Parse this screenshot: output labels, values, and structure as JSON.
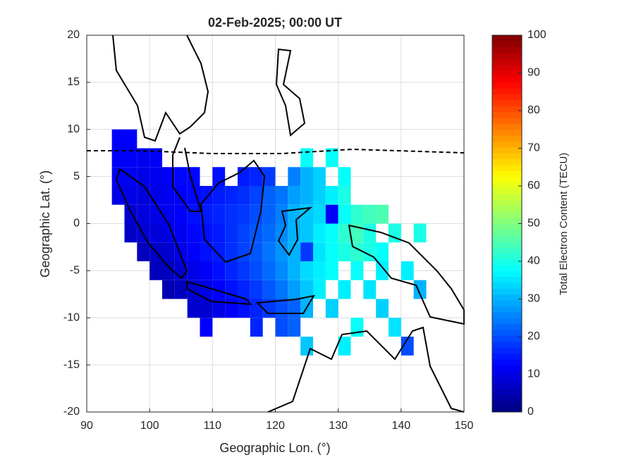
{
  "chart_data": {
    "type": "heatmap",
    "title": "02-Feb-2025; 00:00 UT",
    "x_label": "Geographic Lon. (°)",
    "y_label": "Geographic Lat. (°)",
    "colorbar_label": "Total Electron Content (TECU)",
    "colormap": "jet",
    "xlim": [
      90,
      150
    ],
    "ylim": [
      -20,
      20
    ],
    "xticks": [
      90,
      100,
      110,
      120,
      130,
      140,
      150
    ],
    "yticks": [
      -20,
      -15,
      -10,
      -5,
      0,
      5,
      10,
      15,
      20
    ],
    "clim": [
      0,
      100
    ],
    "cticks": [
      0,
      10,
      20,
      30,
      40,
      50,
      60,
      70,
      80,
      90,
      100
    ],
    "grid": true,
    "x": [
      95,
      97,
      95,
      97,
      99,
      101,
      125,
      129,
      95,
      97,
      99,
      101,
      103,
      105,
      107,
      111,
      115,
      117,
      119,
      123,
      125,
      127,
      131,
      95,
      97,
      99,
      101,
      103,
      105,
      107,
      109,
      111,
      113,
      115,
      117,
      119,
      121,
      123,
      125,
      127,
      129,
      131,
      97,
      99,
      101,
      103,
      105,
      107,
      109,
      111,
      113,
      115,
      117,
      119,
      121,
      123,
      125,
      127,
      129,
      131,
      133,
      135,
      137,
      97,
      99,
      101,
      103,
      105,
      107,
      109,
      111,
      113,
      115,
      117,
      119,
      121,
      123,
      125,
      127,
      129,
      131,
      133,
      135,
      139,
      143,
      99,
      101,
      103,
      105,
      107,
      109,
      111,
      113,
      115,
      117,
      119,
      121,
      123,
      125,
      127,
      129,
      131,
      133,
      135,
      137,
      101,
      103,
      105,
      107,
      109,
      111,
      113,
      115,
      117,
      119,
      121,
      123,
      125,
      127,
      129,
      133,
      137,
      141,
      103,
      105,
      107,
      109,
      111,
      113,
      115,
      117,
      119,
      121,
      123,
      125,
      127,
      131,
      135,
      143,
      107,
      109,
      111,
      113,
      115,
      117,
      119,
      121,
      123,
      125,
      129,
      137,
      109,
      117,
      121,
      123,
      133,
      139,
      125,
      131,
      141
    ],
    "y": [
      9,
      9,
      7,
      7,
      7,
      7,
      7,
      7,
      5,
      5,
      5,
      5,
      5,
      5,
      5,
      5,
      5,
      5,
      5,
      5,
      5,
      5,
      5,
      3,
      3,
      3,
      3,
      3,
      3,
      3,
      3,
      3,
      3,
      3,
      3,
      3,
      3,
      3,
      3,
      3,
      3,
      3,
      1,
      1,
      1,
      1,
      1,
      1,
      1,
      1,
      1,
      1,
      1,
      1,
      1,
      1,
      1,
      1,
      1,
      1,
      1,
      1,
      1,
      -1,
      -1,
      -1,
      -1,
      -1,
      -1,
      -1,
      -1,
      -1,
      -1,
      -1,
      -1,
      -1,
      -1,
      -1,
      -1,
      -1,
      -1,
      -1,
      -1,
      -1,
      -1,
      -3,
      -3,
      -3,
      -3,
      -3,
      -3,
      -3,
      -3,
      -3,
      -3,
      -3,
      -3,
      -3,
      -3,
      -3,
      -3,
      -3,
      -3,
      -3,
      -3,
      -5,
      -5,
      -5,
      -5,
      -5,
      -5,
      -5,
      -5,
      -5,
      -5,
      -5,
      -5,
      -5,
      -5,
      -5,
      -5,
      -5,
      -5,
      -7,
      -7,
      -7,
      -7,
      -7,
      -7,
      -7,
      -7,
      -7,
      -7,
      -7,
      -7,
      -7,
      -7,
      -7,
      -7,
      -9,
      -9,
      -9,
      -9,
      -9,
      -9,
      -9,
      -9,
      -9,
      -9,
      -9,
      -9,
      -11,
      -11,
      -11,
      -11,
      -11,
      -11,
      -13,
      -13,
      -13
    ],
    "values": [
      12,
      12,
      12,
      12,
      11,
      12,
      38,
      38,
      12,
      11,
      10,
      11,
      12,
      13,
      13,
      14,
      15,
      16,
      18,
      25,
      30,
      33,
      38,
      10,
      10,
      9,
      10,
      11,
      12,
      13,
      14,
      15,
      16,
      17,
      19,
      22,
      24,
      28,
      30,
      33,
      36,
      40,
      8,
      9,
      10,
      11,
      12,
      14,
      15,
      16,
      17,
      18,
      20,
      22,
      25,
      30,
      32,
      34,
      12,
      38,
      42,
      44,
      45,
      7,
      8,
      9,
      10,
      11,
      13,
      14,
      15,
      17,
      19,
      21,
      23,
      26,
      30,
      32,
      36,
      38,
      42,
      44,
      40,
      40,
      40,
      6,
      7,
      8,
      10,
      12,
      14,
      15,
      17,
      19,
      21,
      24,
      27,
      30,
      18,
      35,
      38,
      40,
      42,
      40,
      38,
      6,
      6,
      8,
      10,
      12,
      14,
      16,
      18,
      20,
      23,
      26,
      30,
      34,
      36,
      38,
      38,
      36,
      36,
      5,
      6,
      8,
      10,
      12,
      14,
      16,
      18,
      21,
      24,
      28,
      32,
      36,
      36,
      35,
      30,
      8,
      8,
      10,
      12,
      14,
      16,
      18,
      20,
      22,
      30,
      33,
      33,
      12,
      16,
      20,
      22,
      38,
      35,
      32,
      36,
      20
    ]
  }
}
